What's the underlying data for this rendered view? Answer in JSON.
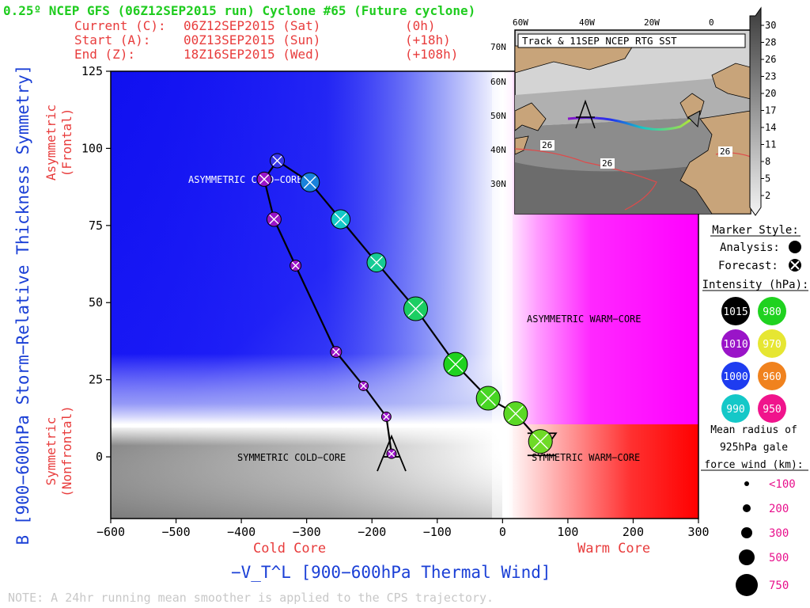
{
  "header": {
    "title": "0.25º NCEP GFS (06Z12SEP2015 run) Cyclone #65 (Future cyclone)",
    "current_label": "Current (C):",
    "current_time": "06Z12SEP2015 (Sat)",
    "current_offset": "(0h)",
    "start_label": "Start (A):",
    "start_time": "00Z13SEP2015 (Sun)",
    "start_offset": "(+18h)",
    "end_label": "End (Z):",
    "end_time": "18Z16SEP2015 (Wed)",
    "end_offset": "(+108h)"
  },
  "colors": {
    "title": "#1fcc1f",
    "header_text": "#e83c3c",
    "axis_text": "#1a3fd6",
    "red_text": "#e83c3c",
    "pink_text": "#e8108c",
    "note": "#c8c8c8",
    "cold_asym": "#0000ff",
    "warm_asym": "#ff00ff",
    "warm_sym": "#ff0000",
    "cold_sym": "#808080"
  },
  "chart_data": {
    "type": "scatter",
    "title": "0.25º NCEP GFS (06Z12SEP2015 run) Cyclone #65 (Future cyclone)",
    "xlabel": "−V_T^L [900−600hPa Thermal Wind]",
    "ylabel": "B [900−600hPa Storm−Relative Thickness Symmetry]",
    "xlim": [
      -600,
      300
    ],
    "ylim": [
      -20,
      125
    ],
    "xticks": [
      -600,
      -500,
      -400,
      -300,
      -200,
      -100,
      0,
      100,
      200,
      300
    ],
    "yticks": [
      0,
      25,
      50,
      75,
      100,
      125
    ],
    "x_tick_labels": [
      "−600",
      "−500",
      "−400",
      "−300",
      "−200",
      "−100",
      "0",
      "100",
      "200",
      "300"
    ],
    "y_tick_labels": [
      "0",
      "25",
      "50",
      "75",
      "100",
      "125"
    ],
    "x_side_labels": {
      "left": "Cold Core",
      "right": "Warm Core"
    },
    "y_side_labels": {
      "upper": "Asymmetric (Frontal)",
      "lower": "Symmetric (Nonfrontal)",
      "upper_1": "Asymmetric",
      "upper_2": "(Frontal)",
      "lower_1": "Symmetric",
      "lower_2": "(Nonfrontal)"
    },
    "quadrant_labels": {
      "asym_cold": "ASYMMETRIC COLD−CORE",
      "asym_warm": "ASYMMETRIC WARM−CORE",
      "sym_cold": "SYMMETRIC COLD−CORE",
      "sym_warm": "SYMMETRIC WARM−CORE"
    },
    "start_marker": "A",
    "start_point": [
      -170,
      0
    ],
    "end_point": [
      60,
      2
    ],
    "track": [
      {
        "x": -170,
        "y": 1,
        "pressure": 1010,
        "radius_km": 100
      },
      {
        "x": -178,
        "y": 13,
        "pressure": 1010,
        "radius_km": 100
      },
      {
        "x": -213,
        "y": 23,
        "pressure": 1010,
        "radius_km": 100
      },
      {
        "x": -255,
        "y": 34,
        "pressure": 1010,
        "radius_km": 200
      },
      {
        "x": -317,
        "y": 62,
        "pressure": 1010,
        "radius_km": 200
      },
      {
        "x": -350,
        "y": 77,
        "pressure": 1010,
        "radius_km": 300
      },
      {
        "x": -365,
        "y": 90,
        "pressure": 1010,
        "radius_km": 300
      },
      {
        "x": -345,
        "y": 96,
        "pressure": 1002,
        "radius_km": 300
      },
      {
        "x": -295,
        "y": 89,
        "pressure": 995,
        "radius_km": 500
      },
      {
        "x": -248,
        "y": 77,
        "pressure": 990,
        "radius_km": 500
      },
      {
        "x": -193,
        "y": 63,
        "pressure": 987,
        "radius_km": 500
      },
      {
        "x": -133,
        "y": 48,
        "pressure": 984,
        "radius_km": 750
      },
      {
        "x": -72,
        "y": 30,
        "pressure": 980,
        "radius_km": 750
      },
      {
        "x": -22,
        "y": 19,
        "pressure": 978,
        "radius_km": 750
      },
      {
        "x": 20,
        "y": 14,
        "pressure": 977,
        "radius_km": 750
      },
      {
        "x": 58,
        "y": 5,
        "pressure": 976,
        "radius_km": 750
      }
    ]
  },
  "inset_map": {
    "title": "Track & 11SEP NCEP RTG SST",
    "lon_labels": [
      "60W",
      "40W",
      "20W",
      "0"
    ],
    "lat_labels": [
      "70N",
      "60N",
      "50N",
      "40N",
      "30N"
    ],
    "sst_labels": [
      "26",
      "26",
      "26"
    ],
    "start_marker": "A",
    "colorbar": [
      30,
      28,
      26,
      23,
      20,
      17,
      14,
      11,
      8,
      5,
      2
    ]
  },
  "legend": {
    "marker_style_title": "Marker Style:",
    "analysis_label": "Analysis:",
    "forecast_label": "Forecast:",
    "intensity_title": "Intensity (hPa):",
    "intensity": [
      {
        "value": "1015",
        "color": "#000000"
      },
      {
        "value": "980",
        "color": "#1fd21f"
      },
      {
        "value": "1010",
        "color": "#9a14c8"
      },
      {
        "value": "970",
        "color": "#e6e632"
      },
      {
        "value": "1000",
        "color": "#1e3cf0"
      },
      {
        "value": "960",
        "color": "#f0821e"
      },
      {
        "value": "990",
        "color": "#14c8c8"
      },
      {
        "value": "950",
        "color": "#f0148c"
      }
    ],
    "wind_title_1": "Mean radius of",
    "wind_title_2": "925hPa gale",
    "wind_title_3": "force wind (km):",
    "wind_sizes": [
      "<100",
      "200",
      "300",
      "500",
      "750"
    ]
  },
  "footer": {
    "note": "NOTE: A 24hr running mean smoother is applied to the CPS trajectory."
  }
}
